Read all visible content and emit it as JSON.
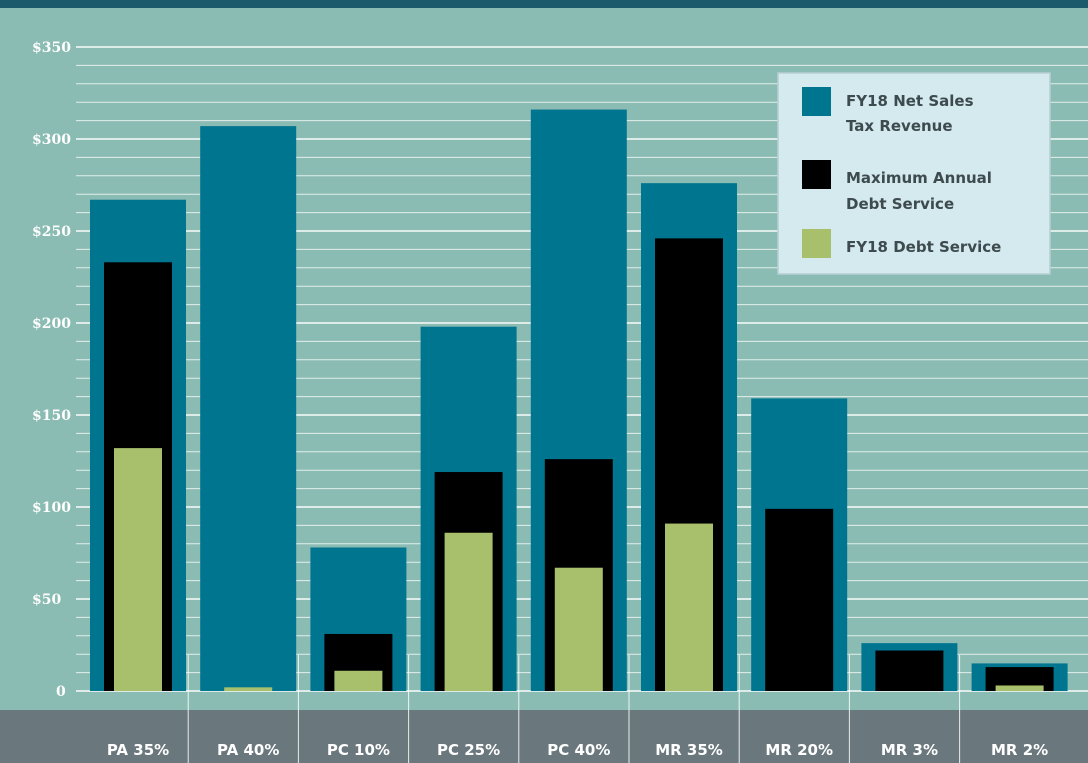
{
  "chart_data": {
    "type": "bar",
    "title": "",
    "xlabel": "",
    "ylabel": "",
    "ylim": [
      0,
      350
    ],
    "yticks": [
      0,
      50,
      100,
      150,
      200,
      250,
      300,
      350
    ],
    "ytick_labels": [
      "0",
      "$50",
      "$100",
      "$150",
      "$200",
      "$250",
      "$300",
      "$350"
    ],
    "categories": [
      "PA 35%",
      "PA 40%",
      "PC 10%",
      "PC 25%",
      "PC 40%",
      "MR 35%",
      "MR 20%",
      "MR 3%",
      "MR 2%"
    ],
    "series": [
      {
        "name": "FY18 Net Sales Tax Revenue",
        "legend_lines": [
          "FY18 Net Sales",
          "Tax Revenue"
        ],
        "color": "#007590",
        "values": [
          267,
          307,
          78,
          198,
          316,
          276,
          159,
          26,
          15
        ]
      },
      {
        "name": "Maximum Annual Debt Service",
        "legend_lines": [
          "Maximum Annual",
          "Debt Service"
        ],
        "color": "#000000",
        "values": [
          233,
          null,
          31,
          119,
          126,
          246,
          99,
          22,
          13
        ]
      },
      {
        "name": "FY18 Debt Service",
        "legend_lines": [
          "FY18 Debt Service"
        ],
        "color": "#a8c06c",
        "values": [
          132,
          2,
          11,
          86,
          67,
          91,
          null,
          null,
          3
        ]
      }
    ],
    "grid": true,
    "legend_position": "top-right",
    "colors": {
      "background": "#8bbcb3",
      "top_band": "#1b5a6a",
      "category_band": "#6a787d",
      "legend_bg": "#d4eaee",
      "grid": "#ffffff"
    }
  }
}
